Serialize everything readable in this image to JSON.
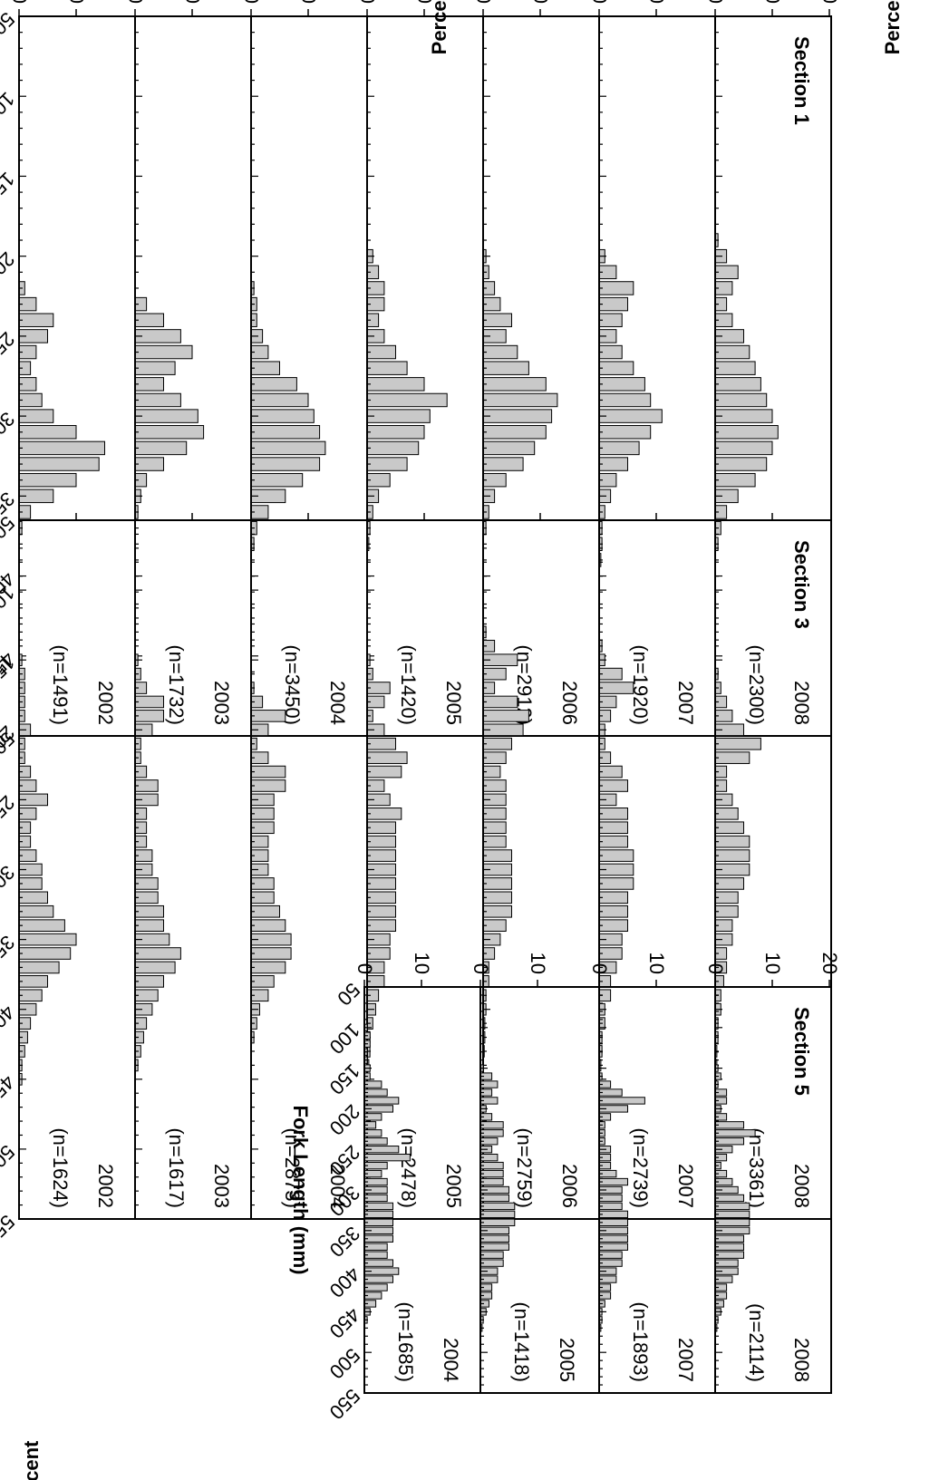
{
  "figure": {
    "y_axis_label": "Percent",
    "x_axis_label": "Fork Length (mm)",
    "x_ticks": [
      50,
      100,
      150,
      200,
      250,
      300,
      350,
      400,
      450,
      500,
      550
    ]
  },
  "chart_data": [
    {
      "type": "bar",
      "title": "Section 1",
      "xlabel": "Fork Length (mm)",
      "ylabel": "Percent",
      "xlim": [
        50,
        500
      ],
      "xticks": [
        50,
        100,
        150,
        200,
        250,
        300,
        350,
        400,
        450,
        500
      ],
      "ylim": [
        0,
        20
      ],
      "grid": false,
      "panels": [
        {
          "year": "2008",
          "n_label": "(n=2300)",
          "x": [
            190,
            200,
            210,
            220,
            230,
            240,
            250,
            260,
            270,
            280,
            290,
            300,
            310,
            320,
            330,
            340,
            350,
            360,
            370,
            380
          ],
          "y": [
            0.5,
            2,
            4,
            3,
            2,
            3,
            5,
            6,
            7,
            8,
            9,
            10,
            11,
            10,
            9,
            7,
            4,
            2,
            1,
            0.5
          ]
        },
        {
          "year": "2007",
          "n_label": "(n=1920)",
          "x": [
            200,
            210,
            220,
            230,
            240,
            250,
            260,
            270,
            280,
            290,
            300,
            310,
            320,
            330,
            340,
            350,
            360,
            370,
            380,
            390
          ],
          "y": [
            1,
            3,
            6,
            5,
            4,
            3,
            4,
            6,
            8,
            9,
            11,
            9,
            7,
            5,
            3,
            2,
            1,
            0.5,
            0.5,
            0.3
          ]
        },
        {
          "year": "2006",
          "n_label": "(n=2912)",
          "x": [
            200,
            210,
            220,
            230,
            240,
            250,
            260,
            270,
            280,
            290,
            300,
            310,
            320,
            330,
            340,
            350,
            360,
            370
          ],
          "y": [
            0.5,
            1,
            2,
            3,
            5,
            4,
            6,
            8,
            11,
            13,
            12,
            11,
            9,
            7,
            4,
            2,
            1,
            0.5
          ]
        },
        {
          "year": "2005",
          "n_label": "(n=1420)",
          "x": [
            200,
            210,
            220,
            230,
            240,
            250,
            260,
            270,
            280,
            290,
            300,
            310,
            320,
            330,
            340,
            350,
            360,
            370,
            380
          ],
          "y": [
            1,
            2,
            3,
            3,
            2,
            3,
            5,
            7,
            10,
            14,
            11,
            10,
            9,
            7,
            4,
            2,
            1,
            0.5,
            0.3
          ]
        },
        {
          "year": "2004",
          "n_label": "(n=3450)",
          "x": [
            220,
            230,
            240,
            250,
            260,
            270,
            280,
            290,
            300,
            310,
            320,
            330,
            340,
            350,
            360,
            370,
            380
          ],
          "y": [
            0.5,
            1,
            1,
            2,
            3,
            5,
            8,
            10,
            11,
            12,
            13,
            12,
            9,
            6,
            3,
            1,
            0.5
          ]
        },
        {
          "year": "2003",
          "n_label": "(n=1732)",
          "x": [
            230,
            240,
            250,
            260,
            270,
            280,
            290,
            300,
            310,
            320,
            330,
            340,
            350,
            360
          ],
          "y": [
            2,
            5,
            8,
            10,
            7,
            5,
            8,
            11,
            12,
            9,
            5,
            2,
            1,
            0.5
          ]
        },
        {
          "year": "2002",
          "n_label": "(n=1491)",
          "x": [
            220,
            230,
            240,
            250,
            260,
            270,
            280,
            290,
            300,
            310,
            320,
            330,
            340,
            350,
            360,
            370
          ],
          "y": [
            1,
            3,
            6,
            5,
            3,
            2,
            3,
            4,
            6,
            10,
            15,
            14,
            10,
            6,
            2,
            0.5
          ]
        }
      ]
    },
    {
      "type": "bar",
      "title": "Section 3",
      "xlabel": "Fork Length (mm)",
      "ylabel": "Percent",
      "xlim": [
        50,
        550
      ],
      "xticks": [
        50,
        100,
        150,
        200,
        250,
        300,
        350,
        400,
        450,
        500,
        550
      ],
      "ylim": [
        0,
        20
      ],
      "grid": false,
      "panels": [
        {
          "year": "2008",
          "n_label": "(n=3361)",
          "x": [
            160,
            170,
            180,
            190,
            200,
            210,
            220,
            230,
            240,
            250,
            260,
            270,
            280,
            290,
            300,
            310,
            320,
            330,
            340,
            350,
            360,
            370,
            380,
            390,
            400,
            410,
            420,
            430,
            440,
            450
          ],
          "y": [
            0.5,
            1,
            2,
            3,
            5,
            8,
            6,
            2,
            2,
            3,
            4,
            5,
            6,
            6,
            6,
            5,
            4,
            4,
            3,
            3,
            2,
            2,
            1.5,
            1,
            1,
            0.5,
            0.5,
            0.3,
            0.3,
            0.2
          ]
        },
        {
          "year": "2007",
          "n_label": "(n=2739)",
          "x": [
            140,
            150,
            160,
            170,
            180,
            190,
            200,
            210,
            220,
            230,
            240,
            250,
            260,
            270,
            280,
            290,
            300,
            310,
            320,
            330,
            340,
            350,
            360,
            370,
            380,
            390,
            400,
            410,
            420,
            430,
            440
          ],
          "y": [
            0.5,
            1,
            4,
            6,
            3,
            2,
            1,
            1,
            2,
            4,
            5,
            3,
            5,
            5,
            5,
            6,
            6,
            6,
            5,
            5,
            5,
            4,
            4,
            3,
            2,
            2,
            1,
            1,
            0.5,
            0.5,
            0.3
          ]
        },
        {
          "year": "2006",
          "n_label": "(n=2759)",
          "x": [
            130,
            140,
            150,
            160,
            170,
            180,
            190,
            200,
            210,
            220,
            230,
            240,
            250,
            260,
            270,
            280,
            290,
            300,
            310,
            320,
            330,
            340,
            350,
            360,
            370,
            380,
            390,
            400,
            410,
            420,
            430
          ],
          "y": [
            0.5,
            2,
            6,
            4,
            2,
            6,
            8,
            7,
            5,
            4,
            3,
            4,
            4,
            4,
            4,
            4,
            5,
            5,
            5,
            5,
            5,
            4,
            3,
            2,
            1,
            1,
            0.5,
            0.5,
            0.3,
            0.3,
            0.2
          ]
        },
        {
          "year": "2005",
          "n_label": "(n=2478)",
          "x": [
            150,
            160,
            170,
            180,
            190,
            200,
            210,
            220,
            230,
            240,
            250,
            260,
            270,
            280,
            290,
            300,
            310,
            320,
            330,
            340,
            350,
            360,
            370,
            380,
            390,
            400,
            410,
            420,
            430,
            440
          ],
          "y": [
            0.5,
            1,
            4,
            3,
            1,
            3,
            5,
            7,
            6,
            3,
            4,
            6,
            5,
            5,
            5,
            5,
            5,
            5,
            5,
            5,
            4,
            4,
            3,
            3,
            2,
            1.5,
            1,
            0.5,
            0.5,
            0.3
          ]
        },
        {
          "year": "2004",
          "n_label": "(n=2873)",
          "x": [
            170,
            180,
            190,
            200,
            210,
            220,
            230,
            240,
            250,
            260,
            270,
            280,
            290,
            300,
            310,
            320,
            330,
            340,
            350,
            360,
            370,
            380,
            390,
            400,
            410,
            420
          ],
          "y": [
            0.5,
            2,
            6,
            3,
            1,
            3,
            6,
            6,
            4,
            4,
            4,
            3,
            3,
            3,
            4,
            4,
            5,
            6,
            7,
            7,
            6,
            4,
            3,
            1.5,
            1,
            0.5
          ]
        },
        {
          "year": "2003",
          "n_label": "(n=1617)",
          "x": [
            150,
            160,
            170,
            180,
            190,
            200,
            210,
            220,
            230,
            240,
            250,
            260,
            270,
            280,
            290,
            300,
            310,
            320,
            330,
            340,
            350,
            360,
            370,
            380,
            390,
            400,
            410,
            420,
            430,
            440
          ],
          "y": [
            0.5,
            1,
            2,
            5,
            5,
            3,
            1,
            1,
            2,
            4,
            4,
            2,
            2,
            2,
            3,
            3,
            4,
            4,
            5,
            5,
            6,
            8,
            7,
            5,
            4,
            3,
            2,
            1.5,
            1,
            0.5
          ]
        },
        {
          "year": "2002",
          "n_label": "(n=1624)",
          "x": [
            150,
            160,
            170,
            180,
            190,
            200,
            210,
            220,
            230,
            240,
            250,
            260,
            270,
            280,
            290,
            300,
            310,
            320,
            330,
            340,
            350,
            360,
            370,
            380,
            390,
            400,
            410,
            420,
            430,
            440,
            450
          ],
          "y": [
            0.5,
            1,
            1,
            1,
            1,
            2,
            1,
            1,
            2,
            3,
            5,
            3,
            2,
            2,
            3,
            4,
            4,
            5,
            6,
            8,
            10,
            9,
            7,
            5,
            4,
            3,
            2,
            1.5,
            1,
            0.5,
            0.5
          ]
        }
      ]
    },
    {
      "type": "bar",
      "title": "Section 5",
      "xlabel": "Fork Length (mm)",
      "ylabel": "Percent",
      "xlim": [
        50,
        550
      ],
      "xticks": [
        50,
        100,
        150,
        200,
        250,
        300,
        350,
        400,
        450,
        500,
        550
      ],
      "ylim": [
        0,
        20
      ],
      "grid": false,
      "panels": [
        {
          "year": "2008",
          "n_label": "(n=2114)",
          "x": [
            150,
            160,
            170,
            180,
            190,
            200,
            210,
            220,
            230,
            240,
            250,
            260,
            270,
            280,
            290,
            300,
            310,
            320,
            330,
            340,
            350,
            360,
            370,
            380,
            390,
            400,
            410,
            420,
            430,
            440,
            450,
            460,
            470
          ],
          "y": [
            0.5,
            1,
            0.5,
            2,
            2,
            1,
            2,
            5,
            7,
            5,
            3,
            2,
            1,
            2,
            3,
            4,
            5,
            6,
            6,
            6,
            6,
            5,
            5,
            5,
            4,
            4,
            3,
            2,
            2,
            1.5,
            1,
            0.5,
            0.3
          ]
        },
        {
          "year": "2007",
          "n_label": "(n=1893)",
          "x": [
            160,
            170,
            180,
            190,
            200,
            210,
            220,
            230,
            240,
            250,
            260,
            270,
            280,
            290,
            300,
            310,
            320,
            330,
            340,
            350,
            360,
            370,
            380,
            390,
            400,
            410,
            420,
            430,
            440,
            450,
            460,
            470
          ],
          "y": [
            0.5,
            2,
            4,
            8,
            5,
            2,
            1,
            1,
            1,
            2,
            2,
            2,
            3,
            5,
            4,
            4,
            4,
            5,
            5,
            5,
            5,
            5,
            4,
            4,
            3,
            3,
            2,
            2,
            1,
            0.5,
            0.5,
            0.3
          ]
        },
        {
          "year": "2005",
          "n_label": "(n=1418)",
          "x": [
            150,
            160,
            170,
            180,
            190,
            200,
            210,
            220,
            230,
            240,
            250,
            260,
            270,
            280,
            290,
            300,
            310,
            320,
            330,
            340,
            350,
            360,
            370,
            380,
            390,
            400,
            410,
            420,
            430,
            440,
            450,
            460,
            470
          ],
          "y": [
            0.5,
            2,
            3,
            2,
            3,
            1,
            2,
            4,
            4,
            3,
            2,
            3,
            4,
            4,
            4,
            5,
            5,
            6,
            6,
            6,
            5,
            5,
            5,
            4,
            4,
            3,
            3,
            2,
            2,
            1.5,
            1,
            0.5,
            0.3
          ]
        },
        {
          "year": "2004",
          "n_label": "(n=1685)",
          "x": [
            100,
            110,
            120,
            130,
            140,
            150,
            160,
            170,
            180,
            190,
            200,
            210,
            220,
            230,
            240,
            250,
            260,
            270,
            280,
            290,
            300,
            310,
            320,
            330,
            340,
            350,
            360,
            370,
            380,
            390,
            400,
            410,
            420,
            430,
            440,
            450,
            460
          ],
          "y": [
            0.5,
            1,
            1,
            0.5,
            0.5,
            1,
            1,
            3,
            4,
            6,
            5,
            3,
            2,
            3,
            4,
            6,
            8,
            4,
            3,
            4,
            4,
            4,
            5,
            5,
            5,
            5,
            5,
            4,
            4,
            5,
            6,
            5,
            4,
            3,
            2,
            1,
            0.5
          ]
        }
      ]
    }
  ]
}
